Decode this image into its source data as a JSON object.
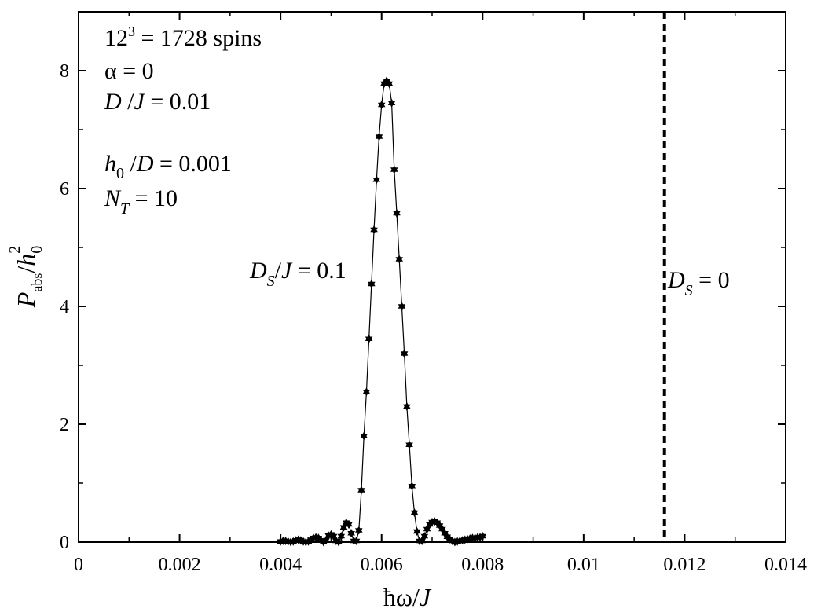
{
  "chart_data": {
    "type": "line",
    "xlim": [
      0,
      0.014
    ],
    "ylim": [
      0,
      9
    ],
    "x_ticks": [
      "0",
      "0.002",
      "0.004",
      "0.006",
      "0.008",
      "0.01",
      "0.012",
      "0.014"
    ],
    "y_ticks": [
      "0",
      "2",
      "4",
      "6",
      "8"
    ],
    "xlabel": {
      "main": "ħω/",
      "var": "J"
    },
    "ylabel": {
      "p": "P",
      "p_sub": "abs",
      "slash": "/",
      "h": "h",
      "h_sub": "0",
      "h_sup": "2"
    },
    "annotations": {
      "spins_base": "12",
      "spins_exp": "3",
      "spins_rest": " = 1728 spins",
      "alpha": "α = 0",
      "dj_d": "D",
      "dj_slash": " /",
      "dj_j": "J",
      "dj_val": " = 0.01",
      "h0_h": "h",
      "h0_sub": "0",
      "h0_rest": " /",
      "h0_d": "D",
      "h0_val": " = 0.001",
      "nt_n": "N",
      "nt_sub": "T",
      "nt_val": " = 10",
      "ds_d": "D",
      "ds_sub": "S",
      "ds_slash": "/",
      "ds_j": "J",
      "ds_val": " = 0.1",
      "ds0_d": "D",
      "ds0_sub": "S",
      "ds0_val": " = 0"
    },
    "vline": {
      "x": 0.0116,
      "label": "D_S = 0",
      "style": "dashed"
    },
    "series": [
      {
        "marker": "star",
        "x": [
          0.004,
          0.00405,
          0.0041,
          0.00415,
          0.0042,
          0.00425,
          0.0043,
          0.00435,
          0.0044,
          0.00445,
          0.0045,
          0.00455,
          0.0046,
          0.00465,
          0.0047,
          0.00475,
          0.0048,
          0.00485,
          0.0049,
          0.00495,
          0.005,
          0.00505,
          0.0051,
          0.00515,
          0.0052,
          0.00525,
          0.0053,
          0.00535,
          0.0054,
          0.00545,
          0.0055,
          0.00555,
          0.0056,
          0.00565,
          0.0057,
          0.00575,
          0.0058,
          0.00585,
          0.0059,
          0.00595,
          0.006,
          0.00605,
          0.0061,
          0.00615,
          0.0062,
          0.00625,
          0.0063,
          0.00635,
          0.0064,
          0.00645,
          0.0065,
          0.00655,
          0.0066,
          0.00665,
          0.0067,
          0.00675,
          0.0068,
          0.00685,
          0.0069,
          0.00695,
          0.007,
          0.00705,
          0.0071,
          0.00715,
          0.0072,
          0.00725,
          0.0073,
          0.00735,
          0.0074,
          0.00745,
          0.0075,
          0.00755,
          0.0076,
          0.00765,
          0.0077,
          0.00775,
          0.0078,
          0.00785,
          0.0079,
          0.00795,
          0.008
        ],
        "y": [
          0.01,
          0.02,
          0.02,
          0.01,
          0.0,
          0.01,
          0.03,
          0.04,
          0.03,
          0.01,
          0.0,
          0.01,
          0.04,
          0.07,
          0.08,
          0.07,
          0.03,
          0.0,
          0.03,
          0.11,
          0.13,
          0.1,
          0.02,
          0.0,
          0.1,
          0.25,
          0.33,
          0.3,
          0.15,
          0.02,
          0.02,
          0.2,
          0.88,
          1.8,
          2.55,
          3.45,
          4.38,
          5.3,
          6.15,
          6.88,
          7.42,
          7.78,
          7.83,
          7.78,
          7.45,
          6.32,
          5.58,
          4.8,
          4.0,
          3.2,
          2.3,
          1.65,
          0.95,
          0.5,
          0.18,
          0.02,
          0.02,
          0.1,
          0.22,
          0.3,
          0.34,
          0.35,
          0.33,
          0.28,
          0.22,
          0.15,
          0.09,
          0.05,
          0.02,
          0.0,
          0.01,
          0.02,
          0.03,
          0.04,
          0.05,
          0.06,
          0.07,
          0.07,
          0.08,
          0.08,
          0.1
        ]
      }
    ]
  }
}
